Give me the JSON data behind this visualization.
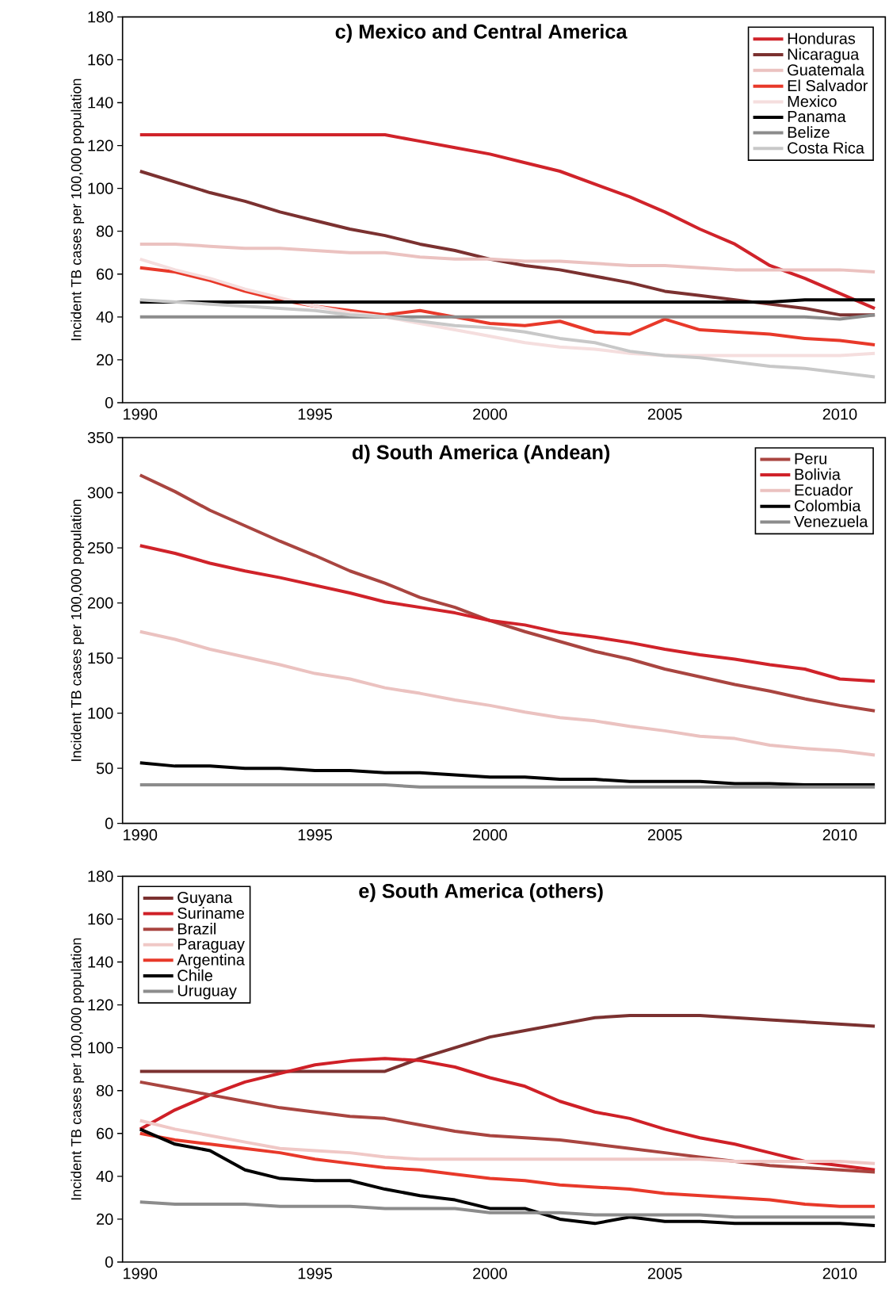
{
  "chart_data": [
    {
      "type": "line",
      "title": "c) Mexico and Central America",
      "ylabel": "Incident TB cases per 100,000 population",
      "legend": "top right",
      "x": [
        1990,
        1991,
        1992,
        1993,
        1994,
        1995,
        1996,
        1997,
        1998,
        1999,
        2000,
        2001,
        2002,
        2003,
        2004,
        2005,
        2006,
        2007,
        2008,
        2009,
        2010,
        2011
      ],
      "xlim": [
        1989.5,
        2011.3
      ],
      "xticks": [
        1990,
        1995,
        2000,
        2005,
        2010
      ],
      "ylim": [
        0,
        180
      ],
      "yticks": [
        0,
        20,
        40,
        60,
        80,
        100,
        120,
        140,
        160,
        180
      ],
      "series": [
        {
          "name": "Honduras",
          "color": "#d0232a",
          "values": [
            125,
            125,
            125,
            125,
            125,
            125,
            125,
            125,
            122,
            119,
            116,
            112,
            108,
            102,
            96,
            89,
            81,
            74,
            64,
            58,
            51,
            44
          ]
        },
        {
          "name": "Nicaragua",
          "color": "#7b3130",
          "values": [
            108,
            103,
            98,
            94,
            89,
            85,
            81,
            78,
            74,
            71,
            67,
            64,
            62,
            59,
            56,
            52,
            50,
            48,
            46,
            44,
            41,
            41
          ]
        },
        {
          "name": "Guatemala",
          "color": "#ebc2c0",
          "values": [
            74,
            74,
            73,
            72,
            72,
            71,
            70,
            70,
            68,
            67,
            67,
            66,
            66,
            65,
            64,
            64,
            63,
            62,
            62,
            62,
            62,
            61
          ]
        },
        {
          "name": "El Salvador",
          "color": "#e8392a",
          "values": [
            63,
            61,
            57,
            52,
            48,
            45,
            43,
            41,
            43,
            40,
            37,
            36,
            38,
            33,
            32,
            39,
            34,
            33,
            32,
            30,
            29,
            27
          ]
        },
        {
          "name": "Mexico",
          "color": "#f5dede",
          "values": [
            67,
            62,
            58,
            53,
            49,
            45,
            42,
            40,
            37,
            34,
            31,
            28,
            26,
            25,
            23,
            22,
            22,
            22,
            22,
            22,
            22,
            23
          ]
        },
        {
          "name": "Panama",
          "color": "#000000",
          "values": [
            47,
            47,
            47,
            47,
            47,
            47,
            47,
            47,
            47,
            47,
            47,
            47,
            47,
            47,
            47,
            47,
            47,
            47,
            47,
            48,
            48,
            48
          ]
        },
        {
          "name": "Belize",
          "color": "#8c8c8c",
          "values": [
            40,
            40,
            40,
            40,
            40,
            40,
            40,
            40,
            40,
            40,
            40,
            40,
            40,
            40,
            40,
            40,
            40,
            40,
            40,
            40,
            39,
            41
          ]
        },
        {
          "name": "Costa Rica",
          "color": "#c8c8c8",
          "values": [
            48,
            47,
            46,
            45,
            44,
            43,
            41,
            40,
            38,
            36,
            35,
            33,
            30,
            28,
            24,
            22,
            21,
            19,
            17,
            16,
            14,
            12
          ]
        }
      ]
    },
    {
      "type": "line",
      "title": "d) South America (Andean)",
      "ylabel": "Incident TB cases per 100,000 population",
      "legend": "top right",
      "x": [
        1990,
        1991,
        1992,
        1993,
        1994,
        1995,
        1996,
        1997,
        1998,
        1999,
        2000,
        2001,
        2002,
        2003,
        2004,
        2005,
        2006,
        2007,
        2008,
        2009,
        2010,
        2011
      ],
      "xlim": [
        1989.5,
        2011.3
      ],
      "xticks": [
        1990,
        1995,
        2000,
        2005,
        2010
      ],
      "ylim": [
        0,
        350
      ],
      "yticks": [
        0,
        50,
        100,
        150,
        200,
        250,
        300,
        350
      ],
      "series": [
        {
          "name": "Peru",
          "color": "#a94540",
          "values": [
            316,
            301,
            284,
            270,
            256,
            243,
            229,
            218,
            205,
            196,
            184,
            174,
            165,
            156,
            149,
            140,
            133,
            126,
            120,
            113,
            107,
            102
          ]
        },
        {
          "name": "Bolivia",
          "color": "#d0232a",
          "values": [
            252,
            245,
            236,
            229,
            223,
            216,
            209,
            201,
            196,
            191,
            184,
            180,
            173,
            169,
            164,
            158,
            153,
            149,
            144,
            140,
            131,
            129
          ]
        },
        {
          "name": "Ecuador",
          "color": "#ebc2c0",
          "values": [
            174,
            167,
            158,
            151,
            144,
            136,
            131,
            123,
            118,
            112,
            107,
            101,
            96,
            93,
            88,
            84,
            79,
            77,
            71,
            68,
            66,
            62
          ]
        },
        {
          "name": "Colombia",
          "color": "#000000",
          "values": [
            55,
            52,
            52,
            50,
            50,
            48,
            48,
            46,
            46,
            44,
            42,
            42,
            40,
            40,
            38,
            38,
            38,
            36,
            36,
            35,
            35,
            35
          ]
        },
        {
          "name": "Venezuela",
          "color": "#8c8c8c",
          "values": [
            35,
            35,
            35,
            35,
            35,
            35,
            35,
            35,
            33,
            33,
            33,
            33,
            33,
            33,
            33,
            33,
            33,
            33,
            33,
            33,
            33,
            33
          ]
        }
      ]
    },
    {
      "type": "line",
      "title": "e) South America (others)",
      "ylabel": "Incident TB cases per 100,000 population",
      "legend": "top left",
      "x": [
        1990,
        1991,
        1992,
        1993,
        1994,
        1995,
        1996,
        1997,
        1998,
        1999,
        2000,
        2001,
        2002,
        2003,
        2004,
        2005,
        2006,
        2007,
        2008,
        2009,
        2010,
        2011
      ],
      "xlim": [
        1989.5,
        2011.3
      ],
      "xticks": [
        1990,
        1995,
        2000,
        2005,
        2010
      ],
      "ylim": [
        0,
        180
      ],
      "yticks": [
        0,
        20,
        40,
        60,
        80,
        100,
        120,
        140,
        160,
        180
      ],
      "series": [
        {
          "name": "Guyana",
          "color": "#7b3130",
          "values": [
            89,
            89,
            89,
            89,
            89,
            89,
            89,
            89,
            95,
            100,
            105,
            108,
            111,
            114,
            115,
            115,
            115,
            114,
            113,
            112,
            111,
            110
          ]
        },
        {
          "name": "Suriname",
          "color": "#cf2027",
          "values": [
            62,
            71,
            78,
            84,
            88,
            92,
            94,
            95,
            94,
            91,
            86,
            82,
            75,
            70,
            67,
            62,
            58,
            55,
            51,
            47,
            45,
            43
          ]
        },
        {
          "name": "Brazil",
          "color": "#a94540",
          "values": [
            84,
            81,
            78,
            75,
            72,
            70,
            68,
            67,
            64,
            61,
            59,
            58,
            57,
            55,
            53,
            51,
            49,
            47,
            45,
            44,
            43,
            42
          ]
        },
        {
          "name": "Paraguay",
          "color": "#f0c8c6",
          "values": [
            66,
            62,
            59,
            56,
            53,
            52,
            51,
            49,
            48,
            48,
            48,
            48,
            48,
            48,
            48,
            48,
            48,
            47,
            47,
            47,
            47,
            46
          ]
        },
        {
          "name": "Argentina",
          "color": "#e8392a",
          "values": [
            60,
            57,
            55,
            53,
            51,
            48,
            46,
            44,
            43,
            41,
            39,
            38,
            36,
            35,
            34,
            32,
            31,
            30,
            29,
            27,
            26,
            26
          ]
        },
        {
          "name": "Chile",
          "color": "#000000",
          "values": [
            62,
            55,
            52,
            43,
            39,
            38,
            38,
            34,
            31,
            29,
            25,
            25,
            20,
            18,
            21,
            19,
            19,
            18,
            18,
            18,
            18,
            17
          ]
        },
        {
          "name": "Uruguay",
          "color": "#8c8c8c",
          "values": [
            28,
            27,
            27,
            27,
            26,
            26,
            26,
            25,
            25,
            25,
            23,
            23,
            23,
            22,
            22,
            22,
            22,
            21,
            21,
            21,
            21,
            21
          ]
        }
      ]
    }
  ]
}
